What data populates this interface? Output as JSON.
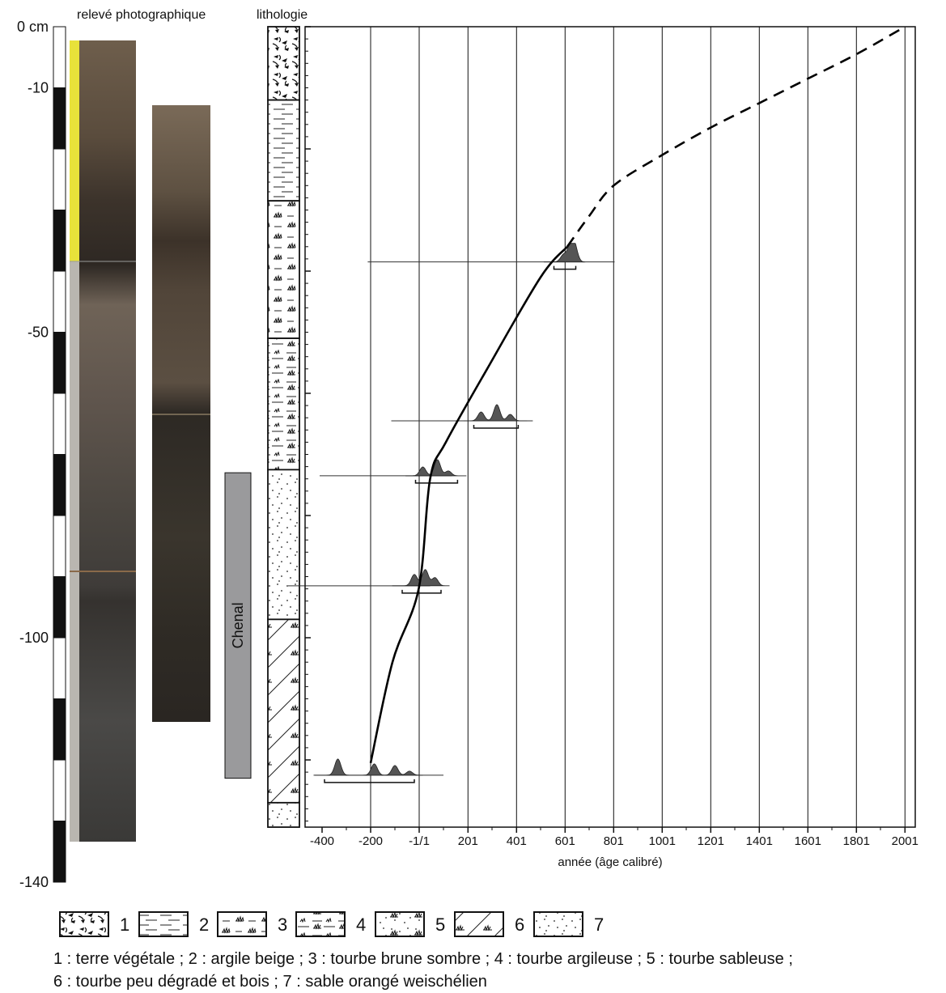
{
  "headers": {
    "photo": "relevé photographique",
    "litho": "lithologie"
  },
  "scale": {
    "ticks": [
      {
        "depth": 0,
        "label": "0 cm"
      },
      {
        "depth": -10,
        "label": "-10"
      },
      {
        "depth": -50,
        "label": "-50"
      },
      {
        "depth": -100,
        "label": "-100"
      },
      {
        "depth": -140,
        "label": "-140"
      }
    ]
  },
  "chenal": {
    "label": "Chenal",
    "top_depth": -73,
    "bottom_depth": -123
  },
  "lithology_column": [
    {
      "top": 0,
      "bottom": -12,
      "type": 1
    },
    {
      "top": -12,
      "bottom": -28.5,
      "type": 2
    },
    {
      "top": -28.5,
      "bottom": -51,
      "type": 3
    },
    {
      "top": -51,
      "bottom": -72.5,
      "type": 4
    },
    {
      "top": -72.5,
      "bottom": -97,
      "type": 7
    },
    {
      "top": -97,
      "bottom": -127,
      "type": 6
    },
    {
      "top": -127,
      "bottom": -131,
      "type": 7
    }
  ],
  "chart_data": {
    "type": "line",
    "xlabel": "année (âge calibré)",
    "x_ticks": [
      {
        "value": -400,
        "label": "-400"
      },
      {
        "value": -200,
        "label": "-200"
      },
      {
        "value": 0,
        "label": "-1/1"
      },
      {
        "value": 201,
        "label": "201"
      },
      {
        "value": 401,
        "label": "401"
      },
      {
        "value": 601,
        "label": "601"
      },
      {
        "value": 801,
        "label": "801"
      },
      {
        "value": 1001,
        "label": "1001"
      },
      {
        "value": 1201,
        "label": "1201"
      },
      {
        "value": 1401,
        "label": "1401"
      },
      {
        "value": 1601,
        "label": "1601"
      },
      {
        "value": 1801,
        "label": "1801"
      },
      {
        "value": 2001,
        "label": "2001"
      }
    ],
    "xlim": [
      -480,
      2040
    ],
    "ylim": [
      -131,
      0
    ],
    "y_ticks": [
      0,
      -20,
      -40,
      -60,
      -80,
      -100,
      -120
    ],
    "age_model_solid": [
      [
        -200,
        -120.5
      ],
      [
        -110,
        -104
      ],
      [
        -2,
        -92
      ],
      [
        45,
        -74
      ],
      [
        110,
        -68
      ],
      [
        280,
        -56
      ],
      [
        500,
        -41
      ],
      [
        610,
        -36
      ]
    ],
    "age_model_dashed": [
      [
        610,
        -36
      ],
      [
        700,
        -31
      ],
      [
        801,
        -26
      ],
      [
        1001,
        -21
      ],
      [
        1201,
        -16.5
      ],
      [
        1401,
        -12.5
      ],
      [
        1601,
        -8.5
      ],
      [
        1801,
        -4.5
      ],
      [
        2001,
        0
      ]
    ],
    "dates": [
      {
        "depth": -38.5,
        "peak": 615,
        "line": [
          -212,
          805
        ],
        "range": [
          555,
          645
        ],
        "peaks": [
          [
            595,
            0.45
          ],
          [
            625,
            1.0
          ],
          [
            640,
            0.85
          ]
        ]
      },
      {
        "depth": -64.5,
        "peak": 300,
        "line": [
          -115,
          468
        ],
        "range": [
          225,
          408
        ],
        "peaks": [
          [
            255,
            0.55
          ],
          [
            320,
            1.0
          ],
          [
            375,
            0.4
          ]
        ]
      },
      {
        "depth": -73.5,
        "peak": 75,
        "line": [
          -410,
          135
        ],
        "range": [
          -15,
          158
        ],
        "peaks": [
          [
            15,
            0.55
          ],
          [
            75,
            1.0
          ],
          [
            120,
            0.3
          ]
        ]
      },
      {
        "depth": -91.5,
        "peak": 30,
        "line": [
          -540,
          45
        ],
        "range": [
          -70,
          90
        ],
        "peaks": [
          [
            -20,
            0.7
          ],
          [
            25,
            1.0
          ],
          [
            65,
            0.5
          ]
        ]
      },
      {
        "depth": -122.5,
        "peak": -300,
        "line": [
          -435,
          100
        ],
        "range": [
          -390,
          -20
        ],
        "peaks": [
          [
            -335,
            1.0
          ],
          [
            -185,
            0.7
          ],
          [
            -100,
            0.6
          ],
          [
            -40,
            0.25
          ]
        ]
      }
    ]
  },
  "legend": {
    "items": [
      {
        "number": "1",
        "type": 1
      },
      {
        "number": "2",
        "type": 2
      },
      {
        "number": "3",
        "type": 3
      },
      {
        "number": "4",
        "type": 4
      },
      {
        "number": "5",
        "type": 5
      },
      {
        "number": "6",
        "type": 6
      },
      {
        "number": "7",
        "type": 7
      }
    ],
    "caption_line1": "1 : terre végétale ; 2 : argile beige ; 3 : tourbe brune sombre ; 4 : tourbe argileuse ; 5 : tourbe sableuse ;",
    "caption_line2": "6 : tourbe peu dégradé et bois ; 7 : sable orangé weischélien"
  },
  "colors": {
    "curve": "#000000",
    "density": "#555555",
    "chenal": "#9a9a9c",
    "yellow_ruler": "#e8e23a"
  }
}
